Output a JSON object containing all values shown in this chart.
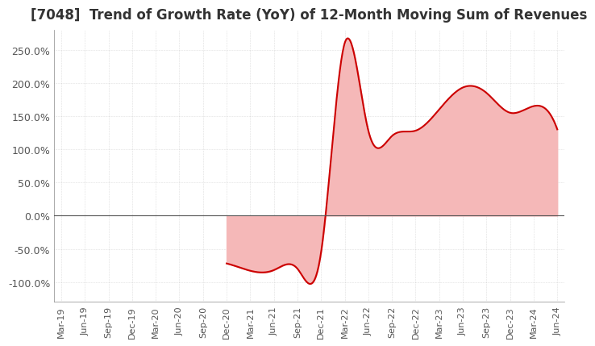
{
  "title": "[7048]  Trend of Growth Rate (YoY) of 12-Month Moving Sum of Revenues",
  "title_fontsize": 12,
  "line_color": "#cc0000",
  "fill_color": "#f5b8b8",
  "background_color": "#ffffff",
  "plot_bg_color": "#ffffff",
  "grid_color": "#aaaaaa",
  "ylim": [
    -1.3,
    2.8
  ],
  "yticks": [
    -1.0,
    -0.5,
    0.0,
    0.5,
    1.0,
    1.5,
    2.0,
    2.5
  ],
  "ytick_labels": [
    "-100.0%",
    "-50.0%",
    "0.0%",
    "50.0%",
    "100.0%",
    "150.0%",
    "200.0%",
    "250.0%"
  ],
  "dates": [
    "Mar-19",
    "Jun-19",
    "Sep-19",
    "Dec-19",
    "Mar-20",
    "Jun-20",
    "Sep-20",
    "Dec-20",
    "Mar-21",
    "Jun-21",
    "Sep-21",
    "Dec-21",
    "Mar-22",
    "Jun-22",
    "Sep-22",
    "Dec-22",
    "Mar-23",
    "Jun-23",
    "Sep-23",
    "Dec-23",
    "Mar-24",
    "Jun-24"
  ],
  "values": [
    null,
    null,
    null,
    null,
    null,
    null,
    null,
    null,
    null,
    null,
    null,
    null,
    null,
    null,
    null,
    null,
    null,
    null,
    null,
    null,
    null,
    null
  ],
  "data_points": {
    "Dec-20": -0.72,
    "Mar-21": -0.83,
    "Jun-21": -0.82,
    "Sep-21": -0.8,
    "Dec-21": -0.55,
    "Mar-22": 2.6,
    "Jun-22": 1.28,
    "Sep-22": 1.2,
    "Dec-22": 1.28,
    "Mar-23": 1.6,
    "Jun-23": 1.93,
    "Sep-23": 1.85,
    "Dec-23": 1.55,
    "Mar-24": 1.65,
    "Jun-24": 1.3
  }
}
